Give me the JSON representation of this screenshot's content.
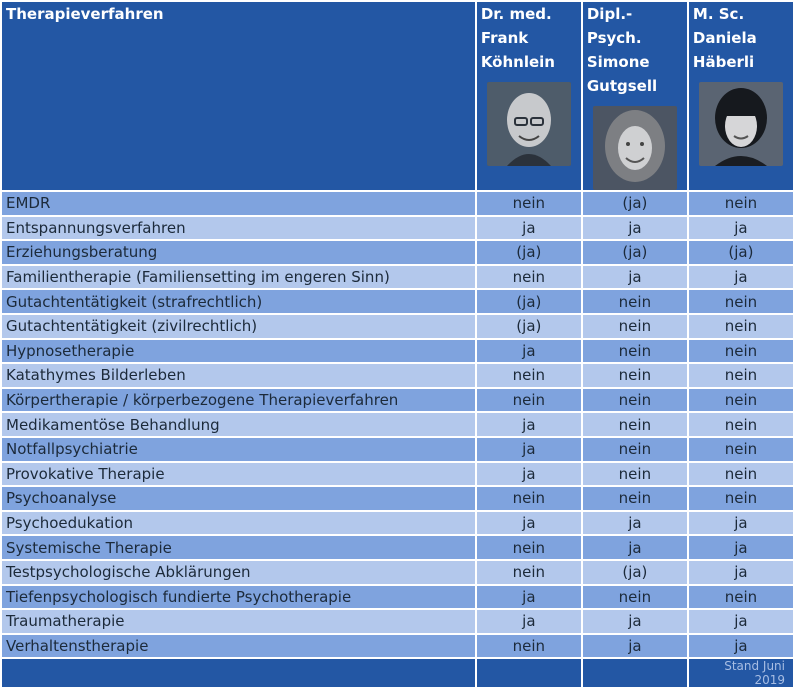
{
  "header": {
    "column_title": "Therapieverfahren",
    "persons": [
      {
        "title": "Dr. med.",
        "first": "Frank",
        "last": "Köhnlein"
      },
      {
        "title": "Dipl.-Psych.",
        "first": "Simone",
        "last": "Gutgsell"
      },
      {
        "title": "M. Sc.",
        "first": "Daniela",
        "last": "Häberli"
      }
    ]
  },
  "rows": [
    {
      "label": "EMDR",
      "v": [
        "nein",
        "(ja)",
        "nein"
      ]
    },
    {
      "label": "Entspannungsverfahren",
      "v": [
        "ja",
        "ja",
        "ja"
      ]
    },
    {
      "label": "Erziehungsberatung",
      "v": [
        "(ja)",
        "(ja)",
        "(ja)"
      ]
    },
    {
      "label": "Familientherapie (Familiensetting im engeren Sinn)",
      "v": [
        "nein",
        "ja",
        "ja"
      ]
    },
    {
      "label": "Gutachtentätigkeit (strafrechtlich)",
      "v": [
        "(ja)",
        "nein",
        "nein"
      ]
    },
    {
      "label": "Gutachtentätigkeit (zivilrechtlich)",
      "v": [
        "(ja)",
        "nein",
        "nein"
      ]
    },
    {
      "label": "Hypnosetherapie",
      "v": [
        "ja",
        "nein",
        "nein"
      ]
    },
    {
      "label": "Katathymes Bilderleben",
      "v": [
        "nein",
        "nein",
        "nein"
      ]
    },
    {
      "label": "Körpertherapie / körperbezogene Therapieverfahren",
      "v": [
        "nein",
        "nein",
        "nein"
      ]
    },
    {
      "label": "Medikamentöse Behandlung",
      "v": [
        "ja",
        "nein",
        "nein"
      ]
    },
    {
      "label": "Notfallpsychiatrie",
      "v": [
        "ja",
        "nein",
        "nein"
      ]
    },
    {
      "label": "Provokative Therapie",
      "v": [
        "ja",
        "nein",
        "nein"
      ]
    },
    {
      "label": "Psychoanalyse",
      "v": [
        "nein",
        "nein",
        "nein"
      ]
    },
    {
      "label": "Psychoedukation",
      "v": [
        "ja",
        "ja",
        "ja"
      ]
    },
    {
      "label": "Systemische Therapie",
      "v": [
        "nein",
        "ja",
        "ja"
      ]
    },
    {
      "label": "Testpsychologische Abklärungen",
      "v": [
        "nein",
        "(ja)",
        "ja"
      ]
    },
    {
      "label": "Tiefenpsychologisch fundierte Psychotherapie",
      "v": [
        "ja",
        "nein",
        "nein"
      ]
    },
    {
      "label": "Traumatherapie",
      "v": [
        "ja",
        "ja",
        "ja"
      ]
    },
    {
      "label": "Verhaltenstherapie",
      "v": [
        "nein",
        "ja",
        "ja"
      ]
    }
  ],
  "footer": {
    "stand": "Stand Juni 2019"
  },
  "colors": {
    "header_bg": "#2357a4",
    "row_dark": "#7fa3de",
    "row_light": "#b3c8ec"
  }
}
